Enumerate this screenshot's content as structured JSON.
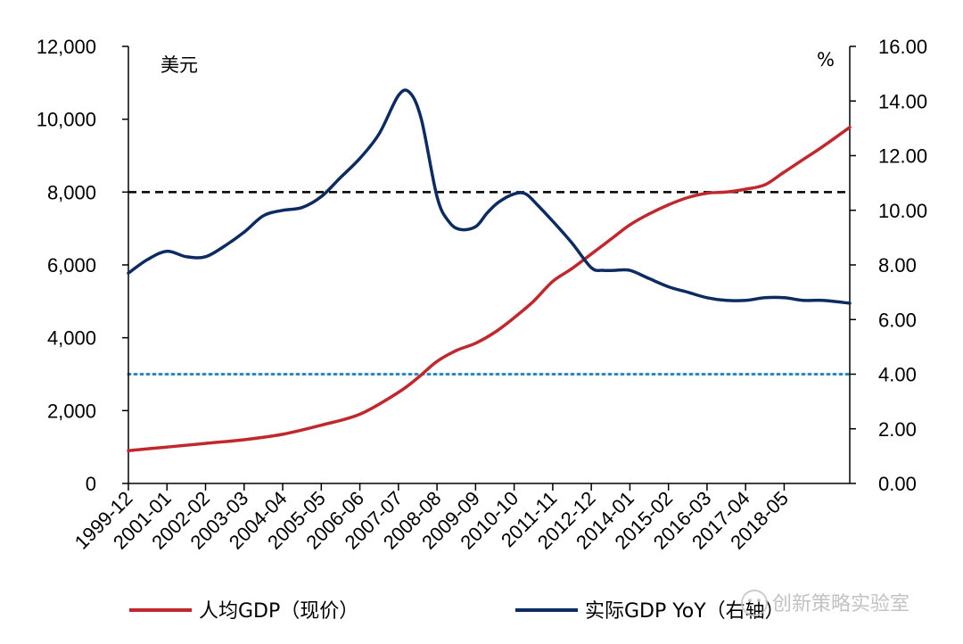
{
  "chart_data": {
    "type": "line",
    "title": "",
    "left_axis": {
      "unit": "美元",
      "ylim": [
        0,
        12000
      ],
      "ticks": [
        "0",
        "2,000",
        "4,000",
        "6,000",
        "8,000",
        "10,000",
        "12,000"
      ],
      "tick_values": [
        0,
        2000,
        4000,
        6000,
        8000,
        10000,
        12000
      ]
    },
    "right_axis": {
      "unit": "%",
      "ylim": [
        0,
        16
      ],
      "ticks": [
        "0.00",
        "2.00",
        "4.00",
        "6.00",
        "8.00",
        "10.00",
        "12.00",
        "14.00",
        "16.00"
      ],
      "tick_values": [
        0,
        2,
        4,
        6,
        8,
        10,
        12,
        14,
        16
      ]
    },
    "x_range": [
      0,
      18.7
    ],
    "x_categories": [
      "1999-12",
      "2001-01",
      "2002-02",
      "2003-03",
      "2004-04",
      "2005-05",
      "2006-06",
      "2007-07",
      "2008-08",
      "2009-09",
      "2010-10",
      "2011-11",
      "2012-12",
      "2014-01",
      "2015-02",
      "2016-03",
      "2017-04",
      "2018-05"
    ],
    "reference_lines": [
      {
        "name": "8000-line",
        "axis": "left",
        "value": 8000,
        "style": "dashed",
        "color": "#000000"
      },
      {
        "name": "3000-line",
        "axis": "left",
        "value": 3000,
        "style": "dotted",
        "color": "#2e86c1"
      }
    ],
    "series": [
      {
        "name": "人均GDP（现价）",
        "axis": "left",
        "color": "#c0282d",
        "x": [
          0,
          1,
          2,
          3,
          4,
          5,
          6,
          7,
          7.5,
          8,
          8.5,
          9,
          9.5,
          10,
          10.5,
          11,
          11.5,
          12,
          12.5,
          13,
          13.5,
          14,
          14.5,
          15,
          15.5,
          16,
          16.5,
          17,
          17.5,
          18,
          18.7
        ],
        "values": [
          900,
          1000,
          1100,
          1200,
          1350,
          1600,
          1900,
          2500,
          2900,
          3350,
          3650,
          3850,
          4150,
          4550,
          5000,
          5550,
          5900,
          6300,
          6700,
          7100,
          7400,
          7650,
          7850,
          7970,
          8000,
          8080,
          8200,
          8550,
          8900,
          9250,
          9780
        ]
      },
      {
        "name": "实际GDP YoY（右轴）",
        "axis": "right",
        "color": "#0d2b63",
        "x": [
          0,
          0.5,
          1,
          1.5,
          2,
          2.5,
          3,
          3.5,
          4,
          4.5,
          5,
          5.5,
          6,
          6.5,
          7,
          7.3,
          7.6,
          8,
          8.3,
          8.6,
          9,
          9.3,
          9.6,
          10,
          10.3,
          10.6,
          11,
          11.5,
          12,
          12.3,
          12.6,
          13,
          13.5,
          14,
          14.5,
          15,
          15.5,
          16,
          16.5,
          17,
          17.5,
          18,
          18.7
        ],
        "values": [
          7.7,
          8.2,
          8.5,
          8.3,
          8.3,
          8.7,
          9.2,
          9.8,
          10.0,
          10.1,
          10.5,
          11.2,
          11.9,
          12.8,
          14.2,
          14.3,
          13.3,
          10.5,
          9.6,
          9.3,
          9.4,
          9.9,
          10.3,
          10.6,
          10.6,
          10.2,
          9.6,
          8.8,
          7.9,
          7.8,
          7.8,
          7.8,
          7.5,
          7.2,
          7.0,
          6.8,
          6.7,
          6.7,
          6.8,
          6.8,
          6.7,
          6.7,
          6.6
        ]
      }
    ],
    "legend_position": "bottom"
  },
  "watermark_text": "创新策略实验室"
}
